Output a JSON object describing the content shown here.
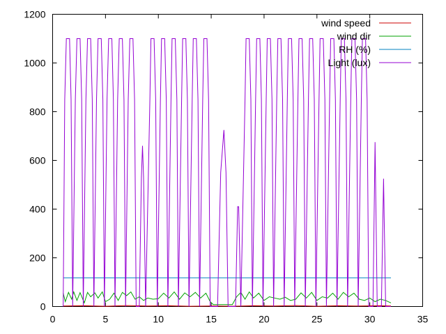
{
  "chart_data": {
    "type": "line",
    "title": "",
    "xlabel": "",
    "ylabel": "",
    "xlim": [
      0,
      35
    ],
    "ylim": [
      0,
      1200
    ],
    "x_ticks": [
      "0",
      "5",
      "10",
      "15",
      "20",
      "25",
      "30",
      "35"
    ],
    "y_ticks": [
      "0",
      "200",
      "400",
      "600",
      "800",
      "1000",
      "1200"
    ],
    "grid": false,
    "legend_position": "top-right",
    "series": [
      {
        "name": "wind speed",
        "color": "#cc0000",
        "values_note_free": true,
        "x": [
          1,
          3,
          5,
          7,
          9,
          11,
          13,
          15,
          17,
          19,
          21,
          23,
          25,
          27,
          29,
          31,
          32
        ],
        "y": [
          2,
          3,
          1,
          4,
          2,
          3,
          1,
          2,
          1,
          3,
          2,
          4,
          1,
          3,
          2,
          3,
          2
        ]
      },
      {
        "name": "wind dir",
        "color": "#00a000",
        "x": [
          1.0,
          1.2,
          1.5,
          1.8,
          2.0,
          2.3,
          2.6,
          3.0,
          3.3,
          3.6,
          4.0,
          4.3,
          4.7,
          5.0,
          5.4,
          5.8,
          6.2,
          6.6,
          7.0,
          7.4,
          7.8,
          8.2,
          8.6,
          9.0,
          9.5,
          10.0,
          10.5,
          11.0,
          11.5,
          12.0,
          12.5,
          13.0,
          13.5,
          14.0,
          14.5,
          14.9,
          15.2,
          15.6,
          16.0,
          16.5,
          17.0,
          17.4,
          17.8,
          18.2,
          18.6,
          19.0,
          19.5,
          20.0,
          20.5,
          21.0,
          21.5,
          22.0,
          22.5,
          23.0,
          23.5,
          24.0,
          24.5,
          25.0,
          25.5,
          26.0,
          26.5,
          27.0,
          27.5,
          28.0,
          28.5,
          29.0,
          29.5,
          30.0,
          30.5,
          31.0,
          31.5,
          32.0
        ],
        "y": [
          55,
          20,
          58,
          30,
          60,
          25,
          57,
          15,
          58,
          40,
          56,
          35,
          60,
          20,
          30,
          55,
          25,
          58,
          45,
          60,
          30,
          40,
          25,
          35,
          30,
          32,
          55,
          35,
          60,
          30,
          56,
          40,
          58,
          35,
          55,
          20,
          8,
          8,
          8,
          8,
          8,
          40,
          58,
          30,
          60,
          35,
          55,
          25,
          40,
          35,
          30,
          38,
          25,
          30,
          56,
          35,
          58,
          25,
          40,
          35,
          55,
          30,
          58,
          40,
          55,
          30,
          25,
          35,
          20,
          30,
          25,
          15
        ]
      },
      {
        "name": "RH (%)",
        "color": "#0080c0",
        "x": [
          1,
          32
        ],
        "y": [
          118,
          118
        ]
      },
      {
        "name": "Light (lux)",
        "color": "#9400d3",
        "x": [
          1.0,
          1.15,
          1.3,
          1.6,
          1.75,
          1.9,
          2.15,
          2.3,
          2.6,
          2.75,
          2.9,
          3.15,
          3.3,
          3.6,
          3.75,
          3.9,
          4.15,
          4.3,
          4.6,
          4.75,
          4.9,
          5.15,
          5.3,
          5.6,
          5.75,
          5.9,
          6.15,
          6.3,
          6.6,
          6.75,
          6.9,
          7.15,
          7.3,
          7.6,
          7.75,
          7.9,
          8.2,
          8.4,
          8.5,
          8.6,
          8.8,
          9.2,
          9.3,
          9.6,
          9.75,
          9.9,
          10.2,
          10.3,
          10.6,
          10.75,
          10.9,
          11.2,
          11.3,
          11.6,
          11.75,
          11.9,
          12.2,
          12.3,
          12.6,
          12.75,
          12.9,
          13.2,
          13.3,
          13.6,
          13.75,
          13.9,
          14.2,
          14.3,
          14.6,
          14.75,
          14.9,
          15.6,
          15.9,
          16.2,
          16.4,
          16.6,
          17.3,
          17.5,
          17.6,
          17.8,
          18.2,
          18.3,
          18.6,
          18.75,
          18.9,
          19.2,
          19.3,
          19.6,
          19.75,
          19.9,
          20.2,
          20.3,
          20.6,
          20.75,
          20.9,
          21.2,
          21.3,
          21.6,
          21.75,
          21.9,
          22.2,
          22.3,
          22.6,
          22.75,
          22.9,
          23.2,
          23.3,
          23.6,
          23.75,
          23.9,
          24.2,
          24.3,
          24.6,
          24.75,
          24.9,
          25.2,
          25.3,
          25.6,
          25.75,
          25.9,
          26.2,
          26.3,
          26.6,
          26.75,
          26.9,
          27.2,
          27.3,
          27.6,
          27.75,
          27.9,
          28.2,
          28.3,
          28.6,
          28.75,
          28.9,
          29.2,
          29.3,
          29.6,
          29.75,
          29.9,
          30.3,
          30.5,
          30.7,
          31.1,
          31.3,
          31.5,
          31.7,
          32.0
        ],
        "y": [
          0,
          850,
          1100,
          1100,
          850,
          0,
          850,
          1100,
          1100,
          850,
          0,
          850,
          1100,
          1100,
          850,
          0,
          850,
          1100,
          1100,
          850,
          0,
          850,
          1100,
          1100,
          850,
          0,
          850,
          1100,
          1100,
          850,
          0,
          850,
          1100,
          1100,
          850,
          0,
          0,
          530,
          660,
          530,
          0,
          850,
          1100,
          1100,
          850,
          0,
          850,
          1100,
          1100,
          850,
          0,
          850,
          1100,
          1100,
          850,
          0,
          850,
          1100,
          1100,
          850,
          0,
          850,
          1100,
          1100,
          850,
          0,
          850,
          1100,
          1100,
          850,
          0,
          0,
          550,
          725,
          550,
          0,
          0,
          410,
          410,
          0,
          850,
          1100,
          1100,
          850,
          0,
          850,
          1100,
          1100,
          850,
          0,
          850,
          1100,
          1100,
          850,
          0,
          850,
          1100,
          1100,
          850,
          0,
          850,
          1100,
          1100,
          850,
          0,
          850,
          1100,
          1100,
          850,
          0,
          850,
          1100,
          1100,
          850,
          0,
          850,
          1100,
          1100,
          850,
          0,
          850,
          1100,
          1100,
          850,
          0,
          850,
          1100,
          1100,
          850,
          0,
          850,
          1100,
          1100,
          850,
          0,
          850,
          1100,
          1100,
          850,
          0,
          0,
          675,
          0,
          0,
          525,
          0,
          0,
          0
        ]
      }
    ]
  }
}
